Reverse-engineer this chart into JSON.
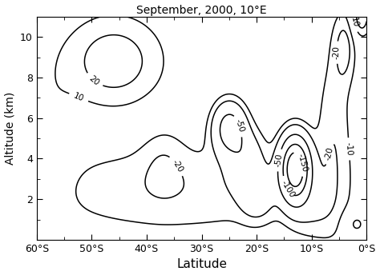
{
  "title": "September, 2000, 10°E",
  "xlabel": "Latitude",
  "ylabel": "Altitude (km)",
  "xlim": [
    -60,
    0
  ],
  "ylim": [
    0,
    11
  ],
  "xtick_labels": [
    "60°S",
    "50°S",
    "40°S",
    "30°S",
    "20°S",
    "10°S",
    "0°S"
  ],
  "xtick_vals": [
    -60,
    -50,
    -40,
    -30,
    -20,
    -10,
    0
  ],
  "ytick_vals": [
    2,
    4,
    6,
    8,
    10
  ],
  "contour_levels": [
    -150,
    -100,
    -50,
    -20,
    -10,
    10,
    20
  ],
  "linewidth": 1.1,
  "linecolor": "black",
  "label_fontsize": 7.5
}
